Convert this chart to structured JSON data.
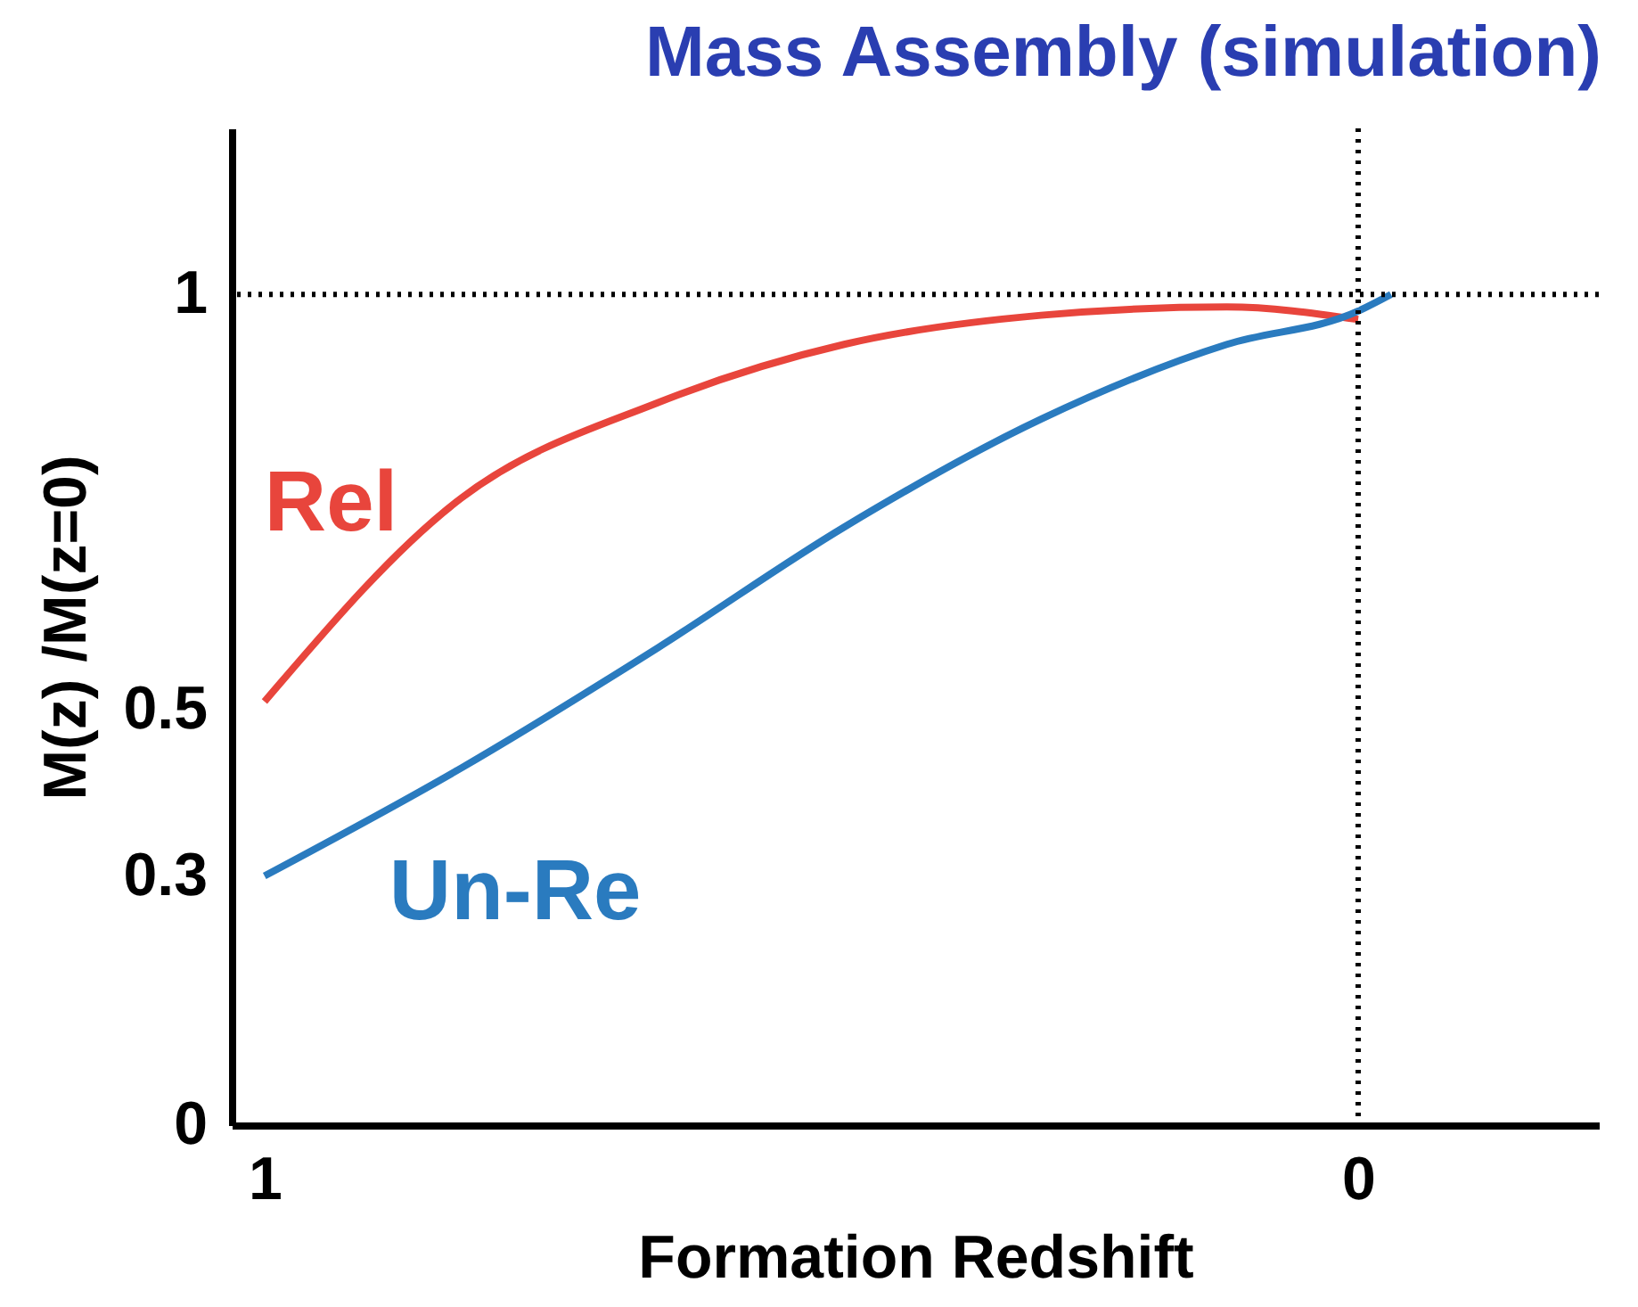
{
  "chart_data": {
    "type": "line",
    "title": "Mass Assembly (simulation)",
    "xlabel": "Formation Redshift",
    "ylabel": "M(z) /M(z=0)",
    "xlim": [
      1.03,
      -0.22
    ],
    "xticks": [
      1,
      0
    ],
    "ylim": [
      0,
      1.2
    ],
    "yticks": [
      0,
      0.3,
      0.5,
      1
    ],
    "series": [
      {
        "name": "Rel",
        "color": "#e8453c",
        "x": [
          1,
          0.82,
          0.64,
          0.47,
          0.29,
          0.12,
          0
        ],
        "values": [
          0.51,
          0.755,
          0.87,
          0.94,
          0.975,
          0.985,
          0.97
        ]
      },
      {
        "name": "Un-Re",
        "color": "#2a7bbf",
        "x": [
          1,
          0.82,
          0.64,
          0.47,
          0.29,
          0.12,
          0,
          -0.03
        ],
        "values": [
          0.3,
          0.43,
          0.575,
          0.72,
          0.85,
          0.94,
          0.98,
          1.0
        ]
      }
    ],
    "ref_lines": [
      {
        "axis": "y",
        "value": 1,
        "line_style": "dotted"
      },
      {
        "axis": "x",
        "value": 0,
        "line_style": "dotted"
      }
    ],
    "grid": false,
    "line_style": "solid",
    "marker": "none"
  }
}
